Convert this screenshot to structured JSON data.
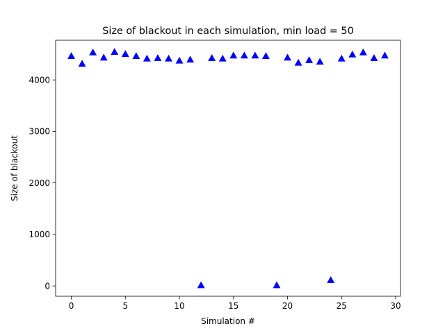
{
  "chart_data": {
    "type": "scatter",
    "title": "Size of blackout in each simulation, min load =  50",
    "xlabel": "Simulation #",
    "ylabel": "Size of blackout",
    "xlim": [
      -1.45,
      30.45
    ],
    "ylim": [
      -200,
      4770
    ],
    "xticks": [
      0,
      5,
      10,
      15,
      20,
      25,
      30
    ],
    "yticks": [
      0,
      1000,
      2000,
      3000,
      4000
    ],
    "grid": false,
    "marker": "triangle-up",
    "color": "#0000ff",
    "series": [
      {
        "x": [
          0,
          1,
          2,
          3,
          4,
          5,
          6,
          7,
          8,
          9,
          10,
          11,
          12,
          13,
          14,
          15,
          16,
          17,
          18,
          19,
          20,
          21,
          22,
          23,
          24,
          25,
          26,
          27,
          28,
          29
        ],
        "y": [
          4460,
          4310,
          4530,
          4430,
          4540,
          4500,
          4460,
          4410,
          4420,
          4410,
          4370,
          4390,
          10,
          4420,
          4410,
          4470,
          4470,
          4470,
          4460,
          10,
          4430,
          4330,
          4380,
          4350,
          110,
          4410,
          4490,
          4530,
          4420,
          4470
        ]
      }
    ]
  }
}
